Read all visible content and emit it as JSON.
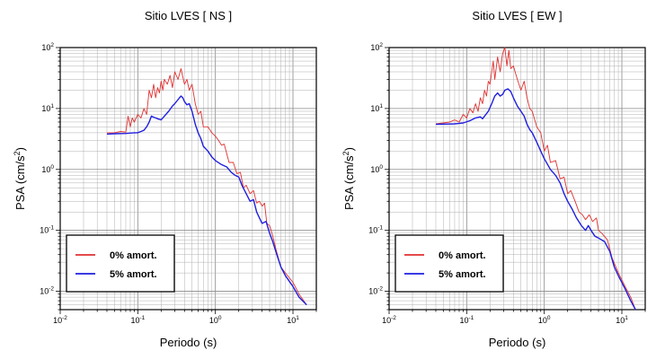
{
  "chart_data": [
    {
      "type": "line",
      "title": "Sitio LVES [ NS ]",
      "xlabel": "Periodo (s)",
      "ylabel": "PSA (cm/s",
      "ylabel_sup": "2",
      "ylabel_end": ")",
      "x_scale": "log",
      "y_scale": "log",
      "xlim": [
        0.01,
        20
      ],
      "ylim": [
        0.005,
        100
      ],
      "grid": true,
      "x_ticks": [
        {
          "base": "10",
          "exp": "-2",
          "value": 0.01
        },
        {
          "base": "10",
          "exp": "-1",
          "value": 0.1
        },
        {
          "base": "10",
          "exp": "0",
          "value": 1
        },
        {
          "base": "10",
          "exp": "1",
          "value": 10
        }
      ],
      "y_ticks": [
        {
          "base": "10",
          "exp": "-2",
          "value": 0.01
        },
        {
          "base": "10",
          "exp": "-1",
          "value": 0.1
        },
        {
          "base": "10",
          "exp": "0",
          "value": 1
        },
        {
          "base": "10",
          "exp": "1",
          "value": 10
        },
        {
          "base": "10",
          "exp": "2",
          "value": 100
        }
      ],
      "legend_position": "bottom-left",
      "series": [
        {
          "name": "0% amort.",
          "color": "#e03030",
          "points": [
            [
              0.04,
              4.0
            ],
            [
              0.05,
              4.0
            ],
            [
              0.06,
              4.2
            ],
            [
              0.07,
              4.1
            ],
            [
              0.075,
              7.5
            ],
            [
              0.08,
              5.0
            ],
            [
              0.085,
              7.0
            ],
            [
              0.09,
              6.0
            ],
            [
              0.1,
              8.0
            ],
            [
              0.11,
              7.0
            ],
            [
              0.12,
              10.0
            ],
            [
              0.13,
              8.0
            ],
            [
              0.14,
              20.0
            ],
            [
              0.15,
              15.0
            ],
            [
              0.16,
              25.0
            ],
            [
              0.17,
              15.0
            ],
            [
              0.18,
              22.0
            ],
            [
              0.19,
              18.0
            ],
            [
              0.2,
              28.0
            ],
            [
              0.21,
              20.0
            ],
            [
              0.22,
              30.0
            ],
            [
              0.24,
              25.0
            ],
            [
              0.26,
              35.0
            ],
            [
              0.28,
              22.0
            ],
            [
              0.3,
              40.0
            ],
            [
              0.33,
              30.0
            ],
            [
              0.36,
              45.0
            ],
            [
              0.4,
              25.0
            ],
            [
              0.43,
              30.0
            ],
            [
              0.46,
              20.0
            ],
            [
              0.5,
              25.0
            ],
            [
              0.55,
              12.0
            ],
            [
              0.6,
              8.0
            ],
            [
              0.65,
              9.0
            ],
            [
              0.7,
              5.0
            ],
            [
              0.8,
              5.0
            ],
            [
              0.9,
              4.0
            ],
            [
              1.0,
              3.5
            ],
            [
              1.1,
              3.0
            ],
            [
              1.2,
              2.5
            ],
            [
              1.3,
              2.6
            ],
            [
              1.5,
              1.3
            ],
            [
              1.7,
              1.3
            ],
            [
              1.9,
              0.85
            ],
            [
              2.1,
              0.9
            ],
            [
              2.3,
              0.5
            ],
            [
              2.5,
              0.55
            ],
            [
              2.8,
              0.4
            ],
            [
              3.1,
              0.45
            ],
            [
              3.4,
              0.28
            ],
            [
              3.7,
              0.3
            ],
            [
              4.0,
              0.25
            ],
            [
              4.3,
              0.28
            ],
            [
              4.6,
              0.13
            ],
            [
              5.0,
              0.12
            ],
            [
              5.5,
              0.08
            ],
            [
              6.0,
              0.05
            ],
            [
              7.0,
              0.025
            ],
            [
              8.0,
              0.02
            ],
            [
              10.0,
              0.014
            ],
            [
              12.0,
              0.009
            ],
            [
              15.0,
              0.006
            ]
          ]
        },
        {
          "name": "5% amort.",
          "color": "#1f1fe0",
          "points": [
            [
              0.04,
              3.8
            ],
            [
              0.05,
              3.85
            ],
            [
              0.07,
              3.9
            ],
            [
              0.09,
              4.0
            ],
            [
              0.1,
              4.0
            ],
            [
              0.11,
              4.2
            ],
            [
              0.12,
              4.4
            ],
            [
              0.13,
              5.0
            ],
            [
              0.14,
              6.0
            ],
            [
              0.15,
              7.5
            ],
            [
              0.16,
              7.2
            ],
            [
              0.17,
              7.0
            ],
            [
              0.18,
              6.8
            ],
            [
              0.2,
              6.5
            ],
            [
              0.22,
              7.5
            ],
            [
              0.25,
              9.0
            ],
            [
              0.28,
              11.0
            ],
            [
              0.3,
              12.0
            ],
            [
              0.33,
              14.0
            ],
            [
              0.36,
              16.0
            ],
            [
              0.38,
              15.0
            ],
            [
              0.4,
              13.0
            ],
            [
              0.43,
              11.5
            ],
            [
              0.46,
              12.0
            ],
            [
              0.5,
              9.0
            ],
            [
              0.55,
              5.5
            ],
            [
              0.6,
              4.0
            ],
            [
              0.65,
              3.2
            ],
            [
              0.7,
              2.4
            ],
            [
              0.8,
              2.0
            ],
            [
              0.9,
              1.6
            ],
            [
              1.0,
              1.4
            ],
            [
              1.2,
              1.2
            ],
            [
              1.4,
              1.1
            ],
            [
              1.6,
              0.9
            ],
            [
              1.8,
              0.8
            ],
            [
              2.0,
              0.75
            ],
            [
              2.2,
              0.55
            ],
            [
              2.5,
              0.4
            ],
            [
              2.8,
              0.3
            ],
            [
              3.1,
              0.32
            ],
            [
              3.4,
              0.2
            ],
            [
              3.7,
              0.16
            ],
            [
              4.0,
              0.13
            ],
            [
              4.5,
              0.14
            ],
            [
              5.0,
              0.09
            ],
            [
              5.5,
              0.065
            ],
            [
              6.0,
              0.045
            ],
            [
              7.0,
              0.025
            ],
            [
              8.0,
              0.018
            ],
            [
              10.0,
              0.012
            ],
            [
              12.0,
              0.008
            ],
            [
              15.0,
              0.006
            ]
          ]
        }
      ]
    },
    {
      "type": "line",
      "title": "Sitio LVES [ EW ]",
      "xlabel": "Periodo (s)",
      "ylabel": "PSA (cm/s",
      "ylabel_sup": "2",
      "ylabel_end": ")",
      "x_scale": "log",
      "y_scale": "log",
      "xlim": [
        0.01,
        20
      ],
      "ylim": [
        0.005,
        100
      ],
      "grid": true,
      "x_ticks": [
        {
          "base": "10",
          "exp": "-2",
          "value": 0.01
        },
        {
          "base": "10",
          "exp": "-1",
          "value": 0.1
        },
        {
          "base": "10",
          "exp": "0",
          "value": 1
        },
        {
          "base": "10",
          "exp": "1",
          "value": 10
        }
      ],
      "y_ticks": [
        {
          "base": "10",
          "exp": "-2",
          "value": 0.01
        },
        {
          "base": "10",
          "exp": "-1",
          "value": 0.1
        },
        {
          "base": "10",
          "exp": "0",
          "value": 1
        },
        {
          "base": "10",
          "exp": "1",
          "value": 10
        },
        {
          "base": "10",
          "exp": "2",
          "value": 100
        }
      ],
      "legend_position": "bottom-left",
      "series": [
        {
          "name": "0% amort.",
          "color": "#e03030",
          "points": [
            [
              0.04,
              5.6
            ],
            [
              0.05,
              5.8
            ],
            [
              0.06,
              6.0
            ],
            [
              0.07,
              6.5
            ],
            [
              0.08,
              6.0
            ],
            [
              0.09,
              8.0
            ],
            [
              0.1,
              7.0
            ],
            [
              0.11,
              10.0
            ],
            [
              0.12,
              8.5
            ],
            [
              0.13,
              12.0
            ],
            [
              0.14,
              9.0
            ],
            [
              0.15,
              15.0
            ],
            [
              0.16,
              12.0
            ],
            [
              0.17,
              20.0
            ],
            [
              0.18,
              16.0
            ],
            [
              0.19,
              28.0
            ],
            [
              0.2,
              25.0
            ],
            [
              0.21,
              40.0
            ],
            [
              0.22,
              60.0
            ],
            [
              0.23,
              30.0
            ],
            [
              0.25,
              70.0
            ],
            [
              0.27,
              40.0
            ],
            [
              0.29,
              80.0
            ],
            [
              0.31,
              100.0
            ],
            [
              0.33,
              50.0
            ],
            [
              0.35,
              90.0
            ],
            [
              0.37,
              45.0
            ],
            [
              0.4,
              50.0
            ],
            [
              0.45,
              30.0
            ],
            [
              0.5,
              20.0
            ],
            [
              0.55,
              28.0
            ],
            [
              0.6,
              15.0
            ],
            [
              0.65,
              10.0
            ],
            [
              0.7,
              9.0
            ],
            [
              0.8,
              5.0
            ],
            [
              0.9,
              4.0
            ],
            [
              1.0,
              2.0
            ],
            [
              1.1,
              2.5
            ],
            [
              1.2,
              1.3
            ],
            [
              1.4,
              1.4
            ],
            [
              1.6,
              0.7
            ],
            [
              1.8,
              0.75
            ],
            [
              2.0,
              0.4
            ],
            [
              2.2,
              0.45
            ],
            [
              2.5,
              0.3
            ],
            [
              2.8,
              0.2
            ],
            [
              3.1,
              0.18
            ],
            [
              3.4,
              0.15
            ],
            [
              3.8,
              0.18
            ],
            [
              4.2,
              0.14
            ],
            [
              4.7,
              0.16
            ],
            [
              5.0,
              0.1
            ],
            [
              5.5,
              0.09
            ],
            [
              6.5,
              0.07
            ],
            [
              7.5,
              0.035
            ],
            [
              9.0,
              0.02
            ],
            [
              11.0,
              0.012
            ],
            [
              13.0,
              0.008
            ],
            [
              15.0,
              0.005
            ]
          ]
        },
        {
          "name": "5% amort.",
          "color": "#1f1fe0",
          "points": [
            [
              0.04,
              5.5
            ],
            [
              0.05,
              5.55
            ],
            [
              0.07,
              5.6
            ],
            [
              0.09,
              5.8
            ],
            [
              0.11,
              6.3
            ],
            [
              0.13,
              7.0
            ],
            [
              0.15,
              7.3
            ],
            [
              0.16,
              6.8
            ],
            [
              0.17,
              7.5
            ],
            [
              0.19,
              9.0
            ],
            [
              0.21,
              12.0
            ],
            [
              0.23,
              16.0
            ],
            [
              0.25,
              18.0
            ],
            [
              0.27,
              16.0
            ],
            [
              0.29,
              17.0
            ],
            [
              0.31,
              20.0
            ],
            [
              0.34,
              21.0
            ],
            [
              0.37,
              19.0
            ],
            [
              0.4,
              15.0
            ],
            [
              0.45,
              11.0
            ],
            [
              0.5,
              9.0
            ],
            [
              0.55,
              7.5
            ],
            [
              0.6,
              5.5
            ],
            [
              0.65,
              4.5
            ],
            [
              0.7,
              4.0
            ],
            [
              0.8,
              2.8
            ],
            [
              0.9,
              2.0
            ],
            [
              1.0,
              1.5
            ],
            [
              1.2,
              1.0
            ],
            [
              1.4,
              0.8
            ],
            [
              1.6,
              0.6
            ],
            [
              1.8,
              0.4
            ],
            [
              2.0,
              0.3
            ],
            [
              2.3,
              0.22
            ],
            [
              2.6,
              0.16
            ],
            [
              3.0,
              0.12
            ],
            [
              3.4,
              0.1
            ],
            [
              3.7,
              0.12
            ],
            [
              4.0,
              0.1
            ],
            [
              4.5,
              0.08
            ],
            [
              5.0,
              0.075
            ],
            [
              6.0,
              0.065
            ],
            [
              7.0,
              0.045
            ],
            [
              8.0,
              0.025
            ],
            [
              9.0,
              0.018
            ],
            [
              11.0,
              0.011
            ],
            [
              13.0,
              0.007
            ],
            [
              15.0,
              0.005
            ]
          ]
        }
      ]
    }
  ]
}
